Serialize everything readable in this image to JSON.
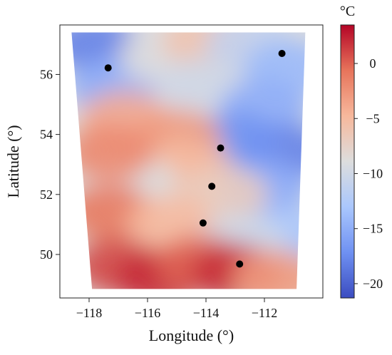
{
  "chart_data": {
    "type": "heatmap",
    "title": "",
    "xlabel": "Longitude (°)",
    "ylabel": "Latitude (°)",
    "xlim": [
      -119.0,
      -110.0
    ],
    "ylim": [
      48.55,
      57.65
    ],
    "xticks": [
      -118,
      -116,
      -114,
      -112
    ],
    "xtick_labels": [
      "−118",
      "−116",
      "−114",
      "−112"
    ],
    "yticks": [
      50,
      52,
      54,
      56
    ],
    "ytick_labels": [
      "50",
      "52",
      "54",
      "56"
    ],
    "grid": false,
    "domain_corners": {
      "top_left": [
        -118.6,
        57.4
      ],
      "top_right": [
        -110.6,
        57.4
      ],
      "bottom_right": [
        -110.9,
        48.85
      ],
      "bottom_left": [
        -117.9,
        48.85
      ]
    },
    "colorbar": {
      "label": "°C",
      "min": -21.3,
      "max": 3.5,
      "ticks": [
        0,
        -5,
        -10,
        -15,
        -20
      ],
      "tick_labels": [
        "0",
        "−5",
        "−10",
        "−15",
        "−20"
      ],
      "colors": [
        "#3b4cc0",
        "#6f91f2",
        "#aac7fd",
        "#dddddd",
        "#f7b89c",
        "#e7745b",
        "#b40426"
      ]
    },
    "field_regions": [
      {
        "lon": -117.8,
        "lat": 57.0,
        "temp": -18
      },
      {
        "lon": -117.2,
        "lat": 55.6,
        "temp": -15
      },
      {
        "lon": -115.5,
        "lat": 56.6,
        "temp": -9
      },
      {
        "lon": -114.0,
        "lat": 57.1,
        "temp": -6
      },
      {
        "lon": -112.5,
        "lat": 57.0,
        "temp": -11
      },
      {
        "lon": -111.2,
        "lat": 56.2,
        "temp": -14
      },
      {
        "lon": -114.2,
        "lat": 55.6,
        "temp": -10
      },
      {
        "lon": -112.0,
        "lat": 54.9,
        "temp": -15
      },
      {
        "lon": -111.3,
        "lat": 53.4,
        "temp": -18
      },
      {
        "lon": -113.0,
        "lat": 53.8,
        "temp": -17
      },
      {
        "lon": -112.0,
        "lat": 52.2,
        "temp": -15
      },
      {
        "lon": -111.3,
        "lat": 50.6,
        "temp": -13
      },
      {
        "lon": -116.8,
        "lat": 54.5,
        "temp": -4
      },
      {
        "lon": -115.0,
        "lat": 53.9,
        "temp": -3
      },
      {
        "lon": -114.6,
        "lat": 52.9,
        "temp": -5
      },
      {
        "lon": -116.5,
        "lat": 52.4,
        "temp": -9
      },
      {
        "lon": -117.3,
        "lat": 53.4,
        "temp": -2
      },
      {
        "lon": -113.4,
        "lat": 52.0,
        "temp": -7
      },
      {
        "lon": -117.3,
        "lat": 51.4,
        "temp": -1
      },
      {
        "lon": -115.2,
        "lat": 51.0,
        "temp": -5
      },
      {
        "lon": -112.8,
        "lat": 50.4,
        "temp": -10
      },
      {
        "lon": -117.0,
        "lat": 49.6,
        "temp": 1
      },
      {
        "lon": -115.6,
        "lat": 49.2,
        "temp": 2
      },
      {
        "lon": -114.2,
        "lat": 49.7,
        "temp": 0
      },
      {
        "lon": -113.0,
        "lat": 49.4,
        "temp": 2
      },
      {
        "lon": -111.6,
        "lat": 49.2,
        "temp": -3
      }
    ],
    "points": [
      {
        "lon": -117.35,
        "lat": 56.22
      },
      {
        "lon": -111.4,
        "lat": 56.7
      },
      {
        "lon": -113.5,
        "lat": 53.55
      },
      {
        "lon": -113.8,
        "lat": 52.27
      },
      {
        "lon": -114.1,
        "lat": 51.05
      },
      {
        "lon": -112.85,
        "lat": 49.68
      }
    ]
  }
}
